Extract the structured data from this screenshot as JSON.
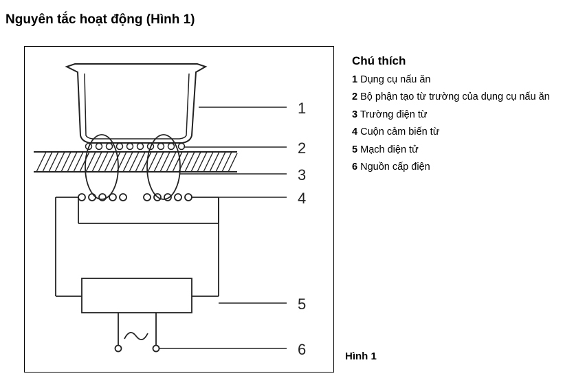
{
  "title": "Nguyên tắc hoạt động (Hình 1)",
  "legend": {
    "title": "Chú thích",
    "items": [
      {
        "num": "1",
        "text": "Dụng cụ nấu ăn"
      },
      {
        "num": "2",
        "text": "Bộ phận tạo từ trường của dụng cụ nấu ăn"
      },
      {
        "num": "3",
        "text": "Trường điện từ"
      },
      {
        "num": "4",
        "text": "Cuộn cảm biến từ"
      },
      {
        "num": "5",
        "text": "Mạch điện tử"
      },
      {
        "num": "6",
        "text": "Nguồn cấp điện"
      }
    ]
  },
  "diagram": {
    "callouts": [
      "1",
      "2",
      "3",
      "4",
      "5",
      "6"
    ],
    "source_symbol": "~"
  },
  "caption": "Hình 1"
}
